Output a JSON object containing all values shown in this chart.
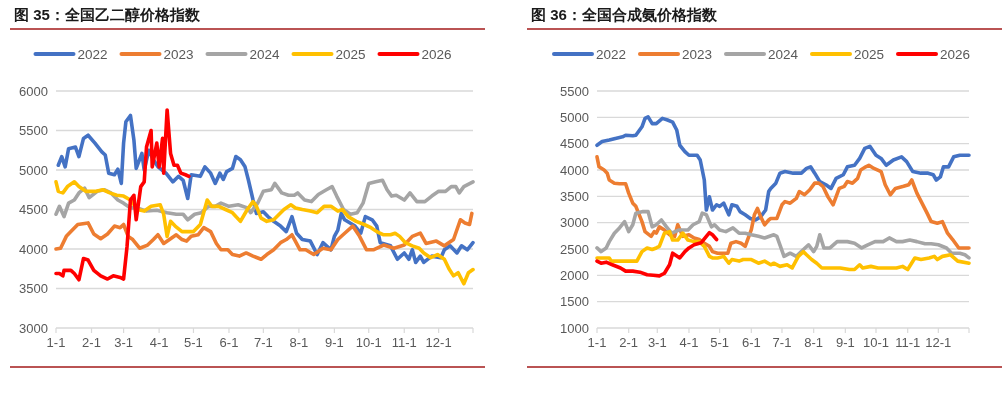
{
  "chart_data": [
    {
      "type": "line",
      "title": "图 35：全国乙二醇价格指数",
      "legend": "top",
      "grid": "y",
      "xlim": [
        "--01-01",
        "--12-31"
      ],
      "xticks": [
        {
          "value": "--01-01",
          "label": "1-1"
        },
        {
          "value": "--02-01",
          "label": "2-1"
        },
        {
          "value": "--03-01",
          "label": "3-1"
        },
        {
          "value": "--04-01",
          "label": "4-1"
        },
        {
          "value": "--05-01",
          "label": "5-1"
        },
        {
          "value": "--06-01",
          "label": "6-1"
        },
        {
          "value": "--07-01",
          "label": "7-1"
        },
        {
          "value": "--08-01",
          "label": "8-1"
        },
        {
          "value": "--09-01",
          "label": "9-1"
        },
        {
          "value": "--10-01",
          "label": "10-1"
        },
        {
          "value": "--11-01",
          "label": "11-1"
        },
        {
          "value": "--12-01",
          "label": "12-1"
        },
        {
          "value": "--12-31",
          "label": null
        }
      ],
      "ylim": [
        3000,
        6000
      ],
      "yticks": [
        3000,
        3500,
        4000,
        4500,
        5000,
        5500,
        6000
      ],
      "series": [
        {
          "name": "2022",
          "color": "#4472c4",
          "x": [
            "--01-03",
            "--01-06",
            "--01-09",
            "--01-12",
            "--01-18",
            "--01-21",
            "--01-25",
            "--01-29",
            "--02-04",
            "--02-10",
            "--02-13",
            "--02-16",
            "--02-21",
            "--02-24",
            "--02-27",
            "--03-01",
            "--03-03",
            "--03-07",
            "--03-10",
            "--03-12",
            "--03-17",
            "--03-19",
            "--03-23",
            "--03-27",
            "--03-31",
            "--04-07",
            "--04-13",
            "--04-18",
            "--04-22",
            "--04-26",
            "--04-29",
            "--05-07",
            "--05-11",
            "--05-16",
            "--05-20",
            "--05-24",
            "--05-27",
            "--05-30",
            "--06-04",
            "--06-07",
            "--06-11",
            "--06-15",
            "--06-18",
            "--06-22",
            "--06-25",
            "--07-01",
            "--07-05",
            "--07-10",
            "--07-16",
            "--07-21",
            "--07-26",
            "--07-30",
            "--08-04",
            "--08-11",
            "--08-17",
            "--08-22",
            "--08-29",
            "--09-01",
            "--09-04",
            "--09-07",
            "--09-10",
            "--09-19",
            "--09-24",
            "--09-28",
            "--10-04",
            "--10-08",
            "--10-11",
            "--10-20",
            "--10-26",
            "--11-01",
            "--11-05",
            "--11-08",
            "--11-11",
            "--11-15",
            "--11-18",
            "--11-25",
            "--12-03",
            "--12-06",
            "--12-11",
            "--12-17",
            "--12-21",
            "--12-26",
            "--12-31"
          ],
          "values": [
            5060,
            5170,
            5040,
            5270,
            5290,
            5170,
            5400,
            5440,
            5340,
            5230,
            5190,
            4960,
            4940,
            5010,
            4830,
            5340,
            5610,
            5690,
            5380,
            5020,
            5210,
            5000,
            5250,
            5130,
            5040,
            4960,
            4850,
            4920,
            4870,
            4640,
            4940,
            4920,
            5040,
            4960,
            4830,
            4960,
            4880,
            4980,
            5020,
            5170,
            5130,
            5040,
            4870,
            4620,
            4450,
            4470,
            4410,
            4350,
            4290,
            4220,
            4410,
            4200,
            4120,
            4100,
            3930,
            4080,
            3990,
            4160,
            4240,
            4450,
            4370,
            4290,
            4200,
            4410,
            4370,
            4290,
            4080,
            4040,
            3870,
            3950,
            3870,
            3990,
            3830,
            3910,
            3830,
            3910,
            3890,
            3990,
            4040,
            3950,
            4040,
            3990,
            4080
          ]
        },
        {
          "name": "2023",
          "color": "#ed7d31",
          "x": [
            "--01-01",
            "--01-05",
            "--01-10",
            "--01-14",
            "--01-20",
            "--01-29",
            "--02-03",
            "--02-09",
            "--02-15",
            "--02-21",
            "--02-26",
            "--03-01",
            "--03-05",
            "--03-09",
            "--03-15",
            "--03-22",
            "--03-27",
            "--03-31",
            "--04-05",
            "--04-11",
            "--04-16",
            "--04-21",
            "--04-25",
            "--04-29",
            "--05-05",
            "--05-10",
            "--05-16",
            "--05-21",
            "--05-25",
            "--05-31",
            "--06-04",
            "--06-10",
            "--06-16",
            "--06-22",
            "--06-29",
            "--07-04",
            "--07-10",
            "--07-16",
            "--07-21",
            "--07-26",
            "--08-02",
            "--08-07",
            "--08-14",
            "--08-22",
            "--08-29",
            "--09-04",
            "--09-10",
            "--09-17",
            "--09-23",
            "--09-29",
            "--10-05",
            "--10-14",
            "--10-23",
            "--11-01",
            "--11-08",
            "--11-15",
            "--11-20",
            "--11-29",
            "--12-06",
            "--12-14",
            "--12-20",
            "--12-24",
            "--12-28",
            "--12-30"
          ],
          "values": [
            4000,
            4010,
            4160,
            4220,
            4310,
            4330,
            4190,
            4130,
            4190,
            4290,
            4270,
            4310,
            4160,
            4120,
            4010,
            4050,
            4120,
            4180,
            4070,
            4130,
            4180,
            4120,
            4100,
            4160,
            4180,
            4270,
            4220,
            4070,
            3990,
            3990,
            3930,
            3910,
            3950,
            3910,
            3870,
            3930,
            3990,
            4080,
            4120,
            4180,
            3990,
            3990,
            3930,
            4010,
            3990,
            4120,
            4200,
            4290,
            4160,
            3990,
            3990,
            4050,
            4010,
            4050,
            4160,
            4200,
            4070,
            4100,
            4040,
            4120,
            4370,
            4330,
            4310,
            4450
          ]
        },
        {
          "name": "2024",
          "color": "#a5a5a5",
          "x": [
            "--01-01",
            "--01-04",
            "--01-08",
            "--01-12",
            "--01-17",
            "--01-21",
            "--01-26",
            "--01-30",
            "--02-06",
            "--02-12",
            "--02-18",
            "--02-24",
            "--03-01",
            "--03-07",
            "--03-13",
            "--03-21",
            "--03-30",
            "--04-08",
            "--04-16",
            "--04-22",
            "--04-26",
            "--05-02",
            "--05-08",
            "--05-14",
            "--05-20",
            "--05-25",
            "--06-01",
            "--06-09",
            "--06-17",
            "--06-20",
            "--06-26",
            "--07-01",
            "--07-08",
            "--07-11",
            "--07-17",
            "--07-23",
            "--07-28",
            "--07-31",
            "--08-06",
            "--08-12",
            "--08-18",
            "--08-25",
            "--08-30",
            "--09-03",
            "--09-09",
            "--09-15",
            "--09-21",
            "--09-26",
            "--10-01",
            "--10-07",
            "--10-13",
            "--10-17",
            "--10-21",
            "--10-25",
            "--11-01",
            "--11-06",
            "--11-12",
            "--11-19",
            "--11-25",
            "--12-01",
            "--12-07",
            "--12-12",
            "--12-16",
            "--12-19",
            "--12-23",
            "--12-31"
          ],
          "values": [
            4440,
            4540,
            4410,
            4580,
            4620,
            4710,
            4770,
            4650,
            4730,
            4750,
            4710,
            4620,
            4580,
            4520,
            4520,
            4480,
            4490,
            4460,
            4440,
            4440,
            4370,
            4440,
            4460,
            4540,
            4540,
            4580,
            4540,
            4560,
            4520,
            4460,
            4580,
            4730,
            4750,
            4830,
            4710,
            4680,
            4680,
            4710,
            4620,
            4600,
            4690,
            4750,
            4790,
            4670,
            4500,
            4440,
            4460,
            4580,
            4830,
            4850,
            4870,
            4750,
            4670,
            4680,
            4620,
            4710,
            4600,
            4600,
            4670,
            4730,
            4730,
            4790,
            4790,
            4710,
            4790,
            4850
          ]
        },
        {
          "name": "2025",
          "color": "#ffc000",
          "x": [
            "--01-01",
            "--01-03",
            "--01-07",
            "--01-11",
            "--01-17",
            "--01-21",
            "--01-27",
            "--02-05",
            "--02-11",
            "--02-17",
            "--02-23",
            "--03-01",
            "--03-07",
            "--03-13",
            "--03-19",
            "--03-25",
            "--04-02",
            "--04-05",
            "--04-08",
            "--04-11",
            "--04-15",
            "--04-21",
            "--04-27",
            "--05-01",
            "--05-07",
            "--05-13",
            "--05-17",
            "--05-23",
            "--05-29",
            "--06-04",
            "--06-11",
            "--06-17",
            "--06-22",
            "--06-25",
            "--06-29",
            "--07-04",
            "--07-10",
            "--07-19",
            "--07-25",
            "--07-29",
            "--08-04",
            "--08-11",
            "--08-17",
            "--08-23",
            "--08-29",
            "--09-04",
            "--09-08",
            "--09-13",
            "--09-20",
            "--09-27",
            "--10-03",
            "--10-08",
            "--10-14",
            "--10-20",
            "--10-24",
            "--10-28",
            "--11-02",
            "--11-08",
            "--11-14",
            "--11-18",
            "--11-24",
            "--11-30",
            "--12-06",
            "--12-10",
            "--12-14",
            "--12-18",
            "--12-23",
            "--12-27",
            "--12-31"
          ],
          "values": [
            4850,
            4730,
            4710,
            4790,
            4850,
            4790,
            4730,
            4730,
            4750,
            4710,
            4680,
            4670,
            4620,
            4500,
            4480,
            4540,
            4560,
            4440,
            4160,
            4350,
            4290,
            4220,
            4220,
            4220,
            4310,
            4620,
            4540,
            4540,
            4500,
            4460,
            4350,
            4500,
            4600,
            4540,
            4390,
            4350,
            4370,
            4500,
            4560,
            4520,
            4500,
            4480,
            4460,
            4540,
            4540,
            4480,
            4500,
            4410,
            4350,
            4310,
            4270,
            4220,
            4180,
            4180,
            4200,
            4160,
            4080,
            4040,
            4010,
            3950,
            3890,
            3930,
            3870,
            3750,
            3660,
            3700,
            3560,
            3700,
            3740
          ]
        },
        {
          "name": "2026",
          "color": "#ff0000",
          "x": [
            "--01-01",
            "--01-04",
            "--01-07",
            "--01-08",
            "--01-14",
            "--01-17",
            "--01-21",
            "--01-25",
            "--01-29",
            "--02-03",
            "--02-09",
            "--02-15",
            "--02-20",
            "--02-26",
            "--03-01",
            "--03-04",
            "--03-07",
            "--03-10",
            "--03-12",
            "--03-16",
            "--03-19",
            "--03-21",
            "--03-25",
            "--03-26",
            "--03-30",
            "--04-01",
            "--04-04",
            "--04-05",
            "--04-08",
            "--04-11",
            "--04-14",
            "--04-17",
            "--04-20",
            "--04-24",
            "--04-27"
          ],
          "values": [
            3690,
            3690,
            3660,
            3730,
            3730,
            3690,
            3610,
            3880,
            3860,
            3730,
            3660,
            3620,
            3660,
            3640,
            3620,
            4030,
            4620,
            4680,
            4370,
            4790,
            4850,
            5290,
            5500,
            5040,
            5340,
            5040,
            5400,
            4960,
            5760,
            5210,
            5060,
            5060,
            4960,
            4940,
            4920
          ]
        }
      ]
    },
    {
      "type": "line",
      "title": "图 36：全国合成氨价格指数",
      "legend": "top",
      "grid": "y",
      "xlim": [
        "--01-01",
        "--12-31"
      ],
      "xticks": [
        {
          "value": "--01-01",
          "label": "1-1"
        },
        {
          "value": "--02-01",
          "label": "2-1"
        },
        {
          "value": "--03-01",
          "label": "3-1"
        },
        {
          "value": "--04-01",
          "label": "4-1"
        },
        {
          "value": "--05-01",
          "label": "5-1"
        },
        {
          "value": "--06-01",
          "label": "6-1"
        },
        {
          "value": "--07-01",
          "label": "7-1"
        },
        {
          "value": "--08-01",
          "label": "8-1"
        },
        {
          "value": "--09-01",
          "label": "9-1"
        },
        {
          "value": "--10-01",
          "label": "10-1"
        },
        {
          "value": "--11-01",
          "label": "11-1"
        },
        {
          "value": "--12-01",
          "label": "12-1"
        },
        {
          "value": "--12-31",
          "label": null
        }
      ],
      "ylim": [
        1000,
        5500
      ],
      "yticks": [
        1000,
        1500,
        2000,
        2500,
        3000,
        3500,
        4000,
        4500,
        5000,
        5500
      ],
      "series": [
        {
          "name": "2022",
          "color": "#4472c4",
          "x": [
            "--01-01",
            "--01-06",
            "--01-13",
            "--01-19",
            "--01-26",
            "--01-29",
            "--02-05",
            "--02-08",
            "--02-14",
            "--02-17",
            "--02-20",
            "--02-24",
            "--02-28",
            "--03-06",
            "--03-11",
            "--03-16",
            "--03-20",
            "--03-23",
            "--03-28",
            "--04-01",
            "--04-09",
            "--04-12",
            "--04-16",
            "--04-18",
            "--04-21",
            "--04-24",
            "--04-28",
            "--05-01",
            "--05-05",
            "--05-10",
            "--05-13",
            "--05-18",
            "--05-21",
            "--05-26",
            "--05-31",
            "--06-05",
            "--06-10",
            "--06-15",
            "--06-18",
            "--06-20",
            "--06-25",
            "--06-29",
            "--07-04",
            "--07-12",
            "--07-20",
            "--07-25",
            "--07-29",
            "--08-02",
            "--08-07",
            "--08-13",
            "--08-18",
            "--08-23",
            "--08-30",
            "--09-03",
            "--09-10",
            "--09-15",
            "--09-20",
            "--09-25",
            "--10-01",
            "--10-06",
            "--10-11",
            "--10-18",
            "--10-26",
            "--10-31",
            "--11-06",
            "--11-14",
            "--11-21",
            "--11-26",
            "--11-29",
            "--12-03",
            "--12-06",
            "--12-11",
            "--12-16",
            "--12-22",
            "--12-31"
          ],
          "values": [
            4470,
            4540,
            4570,
            4600,
            4630,
            4660,
            4650,
            4660,
            4820,
            4980,
            5010,
            4880,
            4880,
            4980,
            4950,
            4910,
            4760,
            4470,
            4350,
            4280,
            4280,
            4190,
            3810,
            3240,
            3490,
            3240,
            3340,
            3310,
            3370,
            3150,
            3340,
            3310,
            3210,
            3150,
            3080,
            3050,
            3110,
            3240,
            3590,
            3650,
            3750,
            3940,
            3970,
            3940,
            3940,
            4030,
            4060,
            3940,
            3780,
            3720,
            3650,
            3840,
            3910,
            4060,
            4090,
            4220,
            4410,
            4450,
            4280,
            4220,
            4090,
            4190,
            4250,
            4160,
            3970,
            3940,
            3940,
            3910,
            3810,
            3870,
            4060,
            4060,
            4250,
            4280,
            4280
          ]
        },
        {
          "name": "2023",
          "color": "#ed7d31",
          "x": [
            "--01-01",
            "--01-03",
            "--01-08",
            "--01-11",
            "--01-13",
            "--01-18",
            "--01-23",
            "--01-29",
            "--02-01",
            "--02-05",
            "--02-08",
            "--02-14",
            "--02-17",
            "--02-23",
            "--02-26",
            "--02-28",
            "--03-03",
            "--03-08",
            "--03-13",
            "--03-18",
            "--03-21",
            "--03-26",
            "--04-01",
            "--04-06",
            "--04-11",
            "--04-16",
            "--04-21",
            "--04-24",
            "--04-29",
            "--05-09",
            "--05-12",
            "--05-17",
            "--05-22",
            "--05-26",
            "--06-01",
            "--06-04",
            "--06-07",
            "--06-10",
            "--06-14",
            "--06-18",
            "--06-20",
            "--06-26",
            "--07-01",
            "--07-04",
            "--07-09",
            "--07-15",
            "--07-18",
            "--07-23",
            "--07-28",
            "--08-02",
            "--08-06",
            "--08-10",
            "--08-15",
            "--08-20",
            "--08-26",
            "--08-31",
            "--09-03",
            "--09-08",
            "--09-13",
            "--09-16",
            "--09-21",
            "--09-24",
            "--09-29",
            "--10-06",
            "--10-10",
            "--10-15",
            "--10-20",
            "--10-28",
            "--11-02",
            "--11-05",
            "--11-10",
            "--11-15",
            "--11-20",
            "--11-24",
            "--11-30",
            "--12-05",
            "--12-10",
            "--12-15",
            "--12-21",
            "--12-31"
          ],
          "values": [
            4250,
            4060,
            4000,
            3940,
            3810,
            3750,
            3740,
            3740,
            3560,
            3370,
            3310,
            3020,
            2830,
            2740,
            2830,
            2800,
            2920,
            2860,
            2770,
            2740,
            2960,
            2740,
            2770,
            2710,
            2680,
            2610,
            2550,
            2450,
            2420,
            2420,
            2610,
            2640,
            2610,
            2550,
            2870,
            3150,
            3270,
            3120,
            2960,
            3050,
            3080,
            3080,
            3340,
            3400,
            3370,
            3460,
            3590,
            3530,
            3620,
            3750,
            3750,
            3690,
            3490,
            3340,
            3650,
            3690,
            3780,
            3750,
            3840,
            4000,
            4060,
            4090,
            4030,
            3970,
            3720,
            3530,
            3650,
            3690,
            3720,
            3810,
            3560,
            3370,
            3180,
            3020,
            2990,
            3020,
            2800,
            2680,
            2520,
            2520
          ]
        },
        {
          "name": "2024",
          "color": "#a5a5a5",
          "x": [
            "--01-01",
            "--01-05",
            "--01-10",
            "--01-13",
            "--01-18",
            "--01-23",
            "--01-28",
            "--02-01",
            "--02-05",
            "--02-08",
            "--02-15",
            "--02-20",
            "--02-24",
            "--02-28",
            "--03-05",
            "--03-10",
            "--03-15",
            "--03-22",
            "--03-31",
            "--04-05",
            "--04-11",
            "--04-14",
            "--04-18",
            "--04-23",
            "--04-26",
            "--05-01",
            "--05-07",
            "--05-14",
            "--05-20",
            "--05-26",
            "--06-01",
            "--06-08",
            "--06-14",
            "--06-23",
            "--06-26",
            "--06-29",
            "--07-03",
            "--07-09",
            "--07-15",
            "--07-22",
            "--07-27",
            "--08-01",
            "--08-04",
            "--08-07",
            "--08-11",
            "--08-17",
            "--08-24",
            "--09-03",
            "--09-10",
            "--09-17",
            "--09-23",
            "--09-30",
            "--10-08",
            "--10-14",
            "--10-21",
            "--10-27",
            "--11-03",
            "--11-10",
            "--11-18",
            "--11-24",
            "--12-01",
            "--12-09",
            "--12-14",
            "--12-22",
            "--12-27",
            "--12-31"
          ],
          "values": [
            2520,
            2450,
            2520,
            2640,
            2800,
            2900,
            3020,
            2830,
            2960,
            3180,
            3210,
            3210,
            2920,
            2960,
            3050,
            2920,
            2800,
            2860,
            2860,
            2960,
            3020,
            3180,
            3150,
            2920,
            2960,
            2860,
            2830,
            2900,
            2800,
            2800,
            2770,
            2740,
            2710,
            2770,
            2740,
            2580,
            2360,
            2420,
            2360,
            2490,
            2580,
            2450,
            2550,
            2770,
            2520,
            2520,
            2640,
            2640,
            2610,
            2520,
            2580,
            2640,
            2640,
            2710,
            2640,
            2640,
            2670,
            2640,
            2600,
            2600,
            2580,
            2520,
            2420,
            2420,
            2390,
            2330
          ]
        },
        {
          "name": "2025",
          "color": "#ffc000",
          "x": [
            "--01-01",
            "--01-13",
            "--01-15",
            "--01-26",
            "--02-09",
            "--02-14",
            "--02-19",
            "--02-24",
            "--02-28",
            "--03-03",
            "--03-08",
            "--03-13",
            "--03-16",
            "--03-21",
            "--03-26",
            "--03-31",
            "--04-06",
            "--04-11",
            "--04-16",
            "--04-21",
            "--04-24",
            "--04-29",
            "--05-05",
            "--05-10",
            "--05-13",
            "--05-20",
            "--05-24",
            "--06-01",
            "--06-08",
            "--06-14",
            "--06-20",
            "--06-23",
            "--06-29",
            "--07-06",
            "--07-11",
            "--07-17",
            "--07-22",
            "--07-25",
            "--07-30",
            "--08-04",
            "--08-09",
            "--08-17",
            "--08-27",
            "--09-05",
            "--09-10",
            "--09-15",
            "--09-18",
            "--09-26",
            "--10-03",
            "--10-12",
            "--10-21",
            "--10-27",
            "--11-01",
            "--11-08",
            "--11-14",
            "--11-22",
            "--11-27",
            "--11-30",
            "--12-05",
            "--12-13",
            "--12-20",
            "--12-31"
          ],
          "values": [
            2330,
            2330,
            2270,
            2270,
            2270,
            2450,
            2520,
            2490,
            2520,
            2550,
            2800,
            2830,
            2670,
            2670,
            2800,
            2670,
            2640,
            2640,
            2550,
            2360,
            2330,
            2330,
            2360,
            2230,
            2300,
            2270,
            2300,
            2300,
            2230,
            2270,
            2200,
            2230,
            2170,
            2200,
            2140,
            2360,
            2450,
            2390,
            2300,
            2230,
            2140,
            2140,
            2140,
            2110,
            2110,
            2200,
            2140,
            2170,
            2140,
            2140,
            2140,
            2170,
            2110,
            2330,
            2300,
            2330,
            2360,
            2300,
            2360,
            2390,
            2270,
            2230
          ]
        },
        {
          "name": "2026",
          "color": "#ff0000",
          "x": [
            "--01-01",
            "--01-05",
            "--01-10",
            "--01-16",
            "--01-24",
            "--01-29",
            "--02-05",
            "--02-12",
            "--02-19",
            "--02-25",
            "--03-03",
            "--03-08",
            "--03-13",
            "--03-16",
            "--03-23",
            "--03-28",
            "--04-01",
            "--04-06",
            "--04-13",
            "--04-18",
            "--04-21",
            "--04-24",
            "--04-28"
          ],
          "values": [
            2270,
            2230,
            2250,
            2200,
            2140,
            2080,
            2080,
            2060,
            2010,
            2000,
            1990,
            2040,
            2200,
            2420,
            2330,
            2450,
            2520,
            2580,
            2620,
            2740,
            2810,
            2770,
            2680
          ]
        }
      ]
    }
  ]
}
